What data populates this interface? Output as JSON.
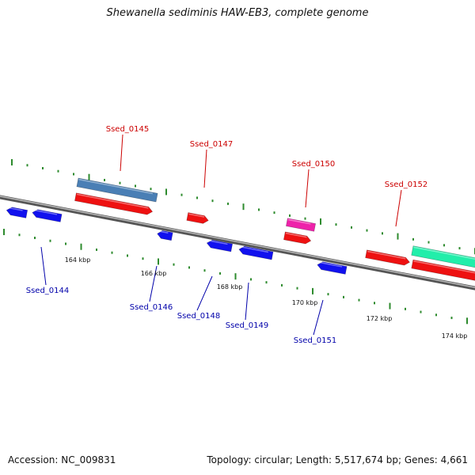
{
  "title": "Shewanella sediminis HAW-EB3, complete genome",
  "footer": {
    "accession": "Accession: NC_009831",
    "summary": "Topology: circular; Length: 5,517,674 bp; Genes: 4,661"
  },
  "colors": {
    "backbone": "#777777",
    "tick": "#2e8b2e",
    "forward_label": "#cc0000",
    "reverse_label": "#0000aa",
    "gene_red": "#ee1111",
    "gene_blue": "#1111ee",
    "gene_steelblue": "#4a7fb5",
    "gene_magenta": "#ee22aa",
    "gene_teal": "#22eeaa"
  },
  "scale_labels": [
    "164 kbp",
    "166 kbp",
    "168 kbp",
    "170 kbp",
    "172 kbp",
    "174 kbp"
  ],
  "gene_labels": {
    "forward": [
      "Ssed_0145",
      "Ssed_0147",
      "Ssed_0150",
      "Ssed_0152"
    ],
    "reverse": [
      "Ssed_0144",
      "Ssed_0146",
      "Ssed_0148",
      "Ssed_0149",
      "Ssed_0151"
    ]
  }
}
